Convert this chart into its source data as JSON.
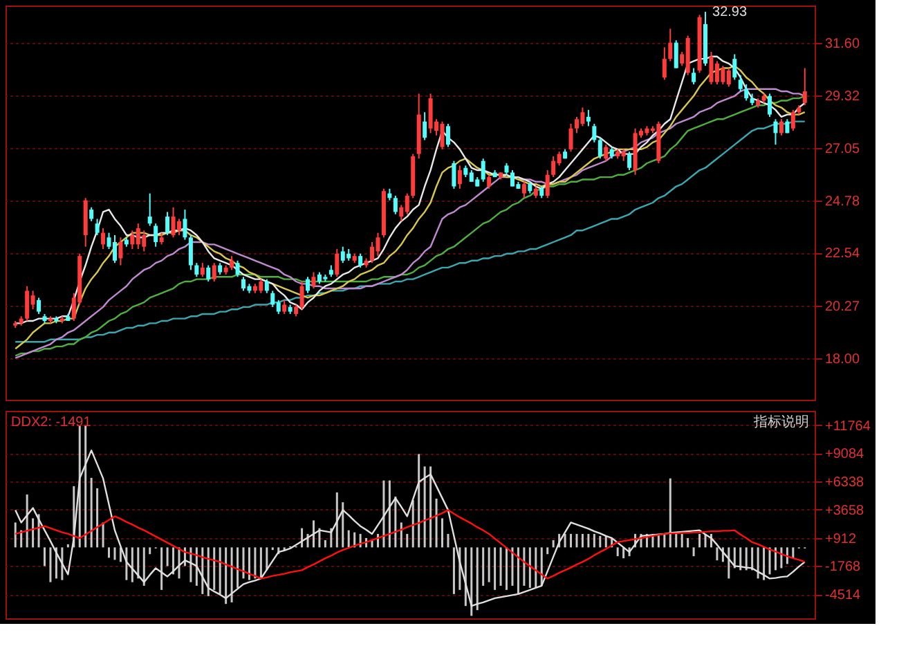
{
  "chart_data": [
    {
      "type": "candlestick",
      "tick_labels": "y",
      "grid": "y",
      "ylim": [
        16.2,
        33.2
      ],
      "yticks": [
        {
          "value": 18.0,
          "label": "18.00"
        },
        {
          "value": 20.27,
          "label": "20.27"
        },
        {
          "value": 22.54,
          "label": "22.54"
        },
        {
          "value": 24.78,
          "label": "24.78"
        },
        {
          "value": 27.05,
          "label": "27.05"
        },
        {
          "value": 29.32,
          "label": "29.32"
        },
        {
          "value": 31.6,
          "label": "31.60"
        }
      ],
      "categories": [
        null,
        null,
        null,
        null,
        null,
        null,
        null,
        null,
        null,
        null,
        null,
        null,
        null,
        null,
        null,
        null,
        null,
        null,
        null,
        null,
        null,
        null,
        null,
        null,
        null,
        null,
        null,
        null,
        null,
        null,
        null,
        null,
        null,
        null,
        null,
        null,
        null,
        null,
        null,
        null,
        null,
        null,
        null,
        null,
        null,
        null,
        null,
        null,
        null,
        null,
        null,
        null,
        null,
        null,
        null,
        null,
        null,
        null,
        null,
        null,
        null,
        null,
        null,
        null,
        null,
        null,
        null,
        null,
        null,
        null,
        null,
        null,
        null,
        null,
        null,
        null,
        null,
        null,
        null,
        null,
        null,
        null,
        null,
        null,
        null,
        null,
        null,
        null,
        null,
        null,
        null,
        null,
        null,
        null,
        null,
        null,
        null,
        null,
        null,
        null,
        null,
        null,
        null,
        null,
        null,
        null,
        null,
        null,
        null,
        null,
        null,
        null,
        null,
        null,
        null,
        null,
        null,
        null,
        null,
        null,
        null,
        null,
        null,
        null,
        null,
        null,
        null,
        null,
        null,
        null,
        null,
        null,
        null,
        null,
        null,
        null
      ],
      "ohlc": [
        [
          19.4,
          19.6,
          19.3,
          19.5
        ],
        [
          19.5,
          19.8,
          19.4,
          19.7
        ],
        [
          19.7,
          21.1,
          19.6,
          20.9
        ],
        [
          20.3,
          20.9,
          20.1,
          20.7
        ],
        [
          20.5,
          20.6,
          19.9,
          20.0
        ],
        [
          19.8,
          19.9,
          19.5,
          19.6
        ],
        [
          19.6,
          19.8,
          19.5,
          19.7
        ],
        [
          19.7,
          19.8,
          19.5,
          19.6
        ],
        [
          19.6,
          19.8,
          19.5,
          19.7
        ],
        [
          19.8,
          19.9,
          19.6,
          19.6
        ],
        [
          19.7,
          20.8,
          19.6,
          20.6
        ],
        [
          20.4,
          22.5,
          20.3,
          22.4
        ],
        [
          23.3,
          24.9,
          22.8,
          24.8
        ],
        [
          24.4,
          24.5,
          23.9,
          24.0
        ],
        [
          23.8,
          24.0,
          23.3,
          23.4
        ],
        [
          22.9,
          23.6,
          22.7,
          23.4
        ],
        [
          23.2,
          23.4,
          22.7,
          22.8
        ],
        [
          23.0,
          23.3,
          22.1,
          22.2
        ],
        [
          22.3,
          23.2,
          22.0,
          23.0
        ],
        [
          23.1,
          23.2,
          22.8,
          22.9
        ],
        [
          22.9,
          23.5,
          22.7,
          23.3
        ],
        [
          22.9,
          23.8,
          22.7,
          23.6
        ],
        [
          22.8,
          23.5,
          22.6,
          23.3
        ],
        [
          24.1,
          25.1,
          23.7,
          23.8
        ],
        [
          23.7,
          23.8,
          22.8,
          23.0
        ],
        [
          23.0,
          23.4,
          22.9,
          23.2
        ],
        [
          24.1,
          24.3,
          23.3,
          23.4
        ],
        [
          23.3,
          24.5,
          23.2,
          24.1
        ],
        [
          23.5,
          24.0,
          23.3,
          23.9
        ],
        [
          24.0,
          24.4,
          23.1,
          23.2
        ],
        [
          23.2,
          23.3,
          21.8,
          22.0
        ],
        [
          22.0,
          22.1,
          21.5,
          21.6
        ],
        [
          21.6,
          22.1,
          21.5,
          21.9
        ],
        [
          21.9,
          22.0,
          21.3,
          21.4
        ],
        [
          21.4,
          22.1,
          21.3,
          22.0
        ],
        [
          22.0,
          22.1,
          21.6,
          21.7
        ],
        [
          21.7,
          22.0,
          21.6,
          21.9
        ],
        [
          21.9,
          22.4,
          21.8,
          22.2
        ],
        [
          22.1,
          22.2,
          21.5,
          21.6
        ],
        [
          21.4,
          21.5,
          20.9,
          21.0
        ],
        [
          21.1,
          21.2,
          20.8,
          20.9
        ],
        [
          20.9,
          21.2,
          20.8,
          21.1
        ],
        [
          20.9,
          21.4,
          20.8,
          21.3
        ],
        [
          21.3,
          21.4,
          20.8,
          20.9
        ],
        [
          20.8,
          20.9,
          20.2,
          20.3
        ],
        [
          20.4,
          20.5,
          19.9,
          20.0
        ],
        [
          20.0,
          20.5,
          19.9,
          20.3
        ],
        [
          20.2,
          20.3,
          19.9,
          20.0
        ],
        [
          19.9,
          20.3,
          19.8,
          20.2
        ],
        [
          20.2,
          21.3,
          20.1,
          21.1
        ],
        [
          21.4,
          21.5,
          20.8,
          20.9
        ],
        [
          21.1,
          21.7,
          21.0,
          21.5
        ],
        [
          21.6,
          21.7,
          21.2,
          21.3
        ],
        [
          21.5,
          21.6,
          21.3,
          21.4
        ],
        [
          21.8,
          22.0,
          21.5,
          21.6
        ],
        [
          21.6,
          22.7,
          21.5,
          22.5
        ],
        [
          22.6,
          22.8,
          22.1,
          22.2
        ],
        [
          22.5,
          22.7,
          22.2,
          22.3
        ],
        [
          22.2,
          22.5,
          22.1,
          22.4
        ],
        [
          22.4,
          22.5,
          21.9,
          22.0
        ],
        [
          22.0,
          22.3,
          21.9,
          22.2
        ],
        [
          22.2,
          23.0,
          22.1,
          22.8
        ],
        [
          22.6,
          23.4,
          22.4,
          23.2
        ],
        [
          23.3,
          25.3,
          23.2,
          25.2
        ],
        [
          25.1,
          25.3,
          24.8,
          24.9
        ],
        [
          24.9,
          25.0,
          24.2,
          24.3
        ],
        [
          24.1,
          24.6,
          23.9,
          24.5
        ],
        [
          24.3,
          25.1,
          24.2,
          25.0
        ],
        [
          25.0,
          26.8,
          24.9,
          26.7
        ],
        [
          26.8,
          29.4,
          26.6,
          28.5
        ],
        [
          28.2,
          28.6,
          27.4,
          27.5
        ],
        [
          27.9,
          29.4,
          27.7,
          29.2
        ],
        [
          27.8,
          28.3,
          27.6,
          28.2
        ],
        [
          27.1,
          28.2,
          27.0,
          28.1
        ],
        [
          28.0,
          28.1,
          27.1,
          27.2
        ],
        [
          26.4,
          26.5,
          25.3,
          25.4
        ],
        [
          25.5,
          26.3,
          25.3,
          26.1
        ],
        [
          26.2,
          26.3,
          25.8,
          25.9
        ],
        [
          26.0,
          26.1,
          25.6,
          25.6
        ],
        [
          25.7,
          25.8,
          25.4,
          25.4
        ],
        [
          26.5,
          26.6,
          25.6,
          25.7
        ],
        [
          25.4,
          25.9,
          25.3,
          25.8
        ],
        [
          26.0,
          26.1,
          25.8,
          25.8
        ],
        [
          25.8,
          26.0,
          25.7,
          26.0
        ],
        [
          26.3,
          26.4,
          25.9,
          26.0
        ],
        [
          26.0,
          26.1,
          25.4,
          25.4
        ],
        [
          25.5,
          25.6,
          25.3,
          25.3
        ],
        [
          25.1,
          25.6,
          24.9,
          25.5
        ],
        [
          25.5,
          25.6,
          25.1,
          25.2
        ],
        [
          25.0,
          25.4,
          24.9,
          25.3
        ],
        [
          25.3,
          25.4,
          24.9,
          25.0
        ],
        [
          25.0,
          26.1,
          24.9,
          25.9
        ],
        [
          25.9,
          26.7,
          25.8,
          26.5
        ],
        [
          26.4,
          26.9,
          26.3,
          26.8
        ],
        [
          26.9,
          27.0,
          26.6,
          26.6
        ],
        [
          27.0,
          28.1,
          26.9,
          27.9
        ],
        [
          27.9,
          28.4,
          27.7,
          28.3
        ],
        [
          28.1,
          28.8,
          28.0,
          28.6
        ],
        [
          28.4,
          28.7,
          28.0,
          28.2
        ],
        [
          28.0,
          28.1,
          27.3,
          27.4
        ],
        [
          27.4,
          27.5,
          26.6,
          26.7
        ],
        [
          26.6,
          27.2,
          26.5,
          27.1
        ],
        [
          27.0,
          27.1,
          26.6,
          26.7
        ],
        [
          26.7,
          27.0,
          26.6,
          26.9
        ],
        [
          26.7,
          27.0,
          26.5,
          26.9
        ],
        [
          26.8,
          26.9,
          26.1,
          26.2
        ],
        [
          26.1,
          27.9,
          25.9,
          27.7
        ],
        [
          27.6,
          27.9,
          27.5,
          27.8
        ],
        [
          27.7,
          28.0,
          27.6,
          27.9
        ],
        [
          27.8,
          28.0,
          27.7,
          27.9
        ],
        [
          26.5,
          28.2,
          26.4,
          28.1
        ],
        [
          30.1,
          31.4,
          30.0,
          30.9
        ],
        [
          30.9,
          32.2,
          30.8,
          31.6
        ],
        [
          31.6,
          31.7,
          30.5,
          30.5
        ],
        [
          30.7,
          31.2,
          30.6,
          31.1
        ],
        [
          30.3,
          31.9,
          30.2,
          31.8
        ],
        [
          30.3,
          30.5,
          29.8,
          29.9
        ],
        [
          30.4,
          32.8,
          30.3,
          32.7
        ],
        [
          32.4,
          32.93,
          30.6,
          30.7
        ],
        [
          29.9,
          31.2,
          29.8,
          31.0
        ],
        [
          29.9,
          30.8,
          29.8,
          30.7
        ],
        [
          29.9,
          30.6,
          29.8,
          30.5
        ],
        [
          29.8,
          30.5,
          29.7,
          30.4
        ],
        [
          30.9,
          31.1,
          30.0,
          30.1
        ],
        [
          30.0,
          30.2,
          29.5,
          29.6
        ],
        [
          29.6,
          29.8,
          29.1,
          29.2
        ],
        [
          29.2,
          29.4,
          28.9,
          29.0
        ],
        [
          28.9,
          29.2,
          28.8,
          29.1
        ],
        [
          29.1,
          29.4,
          29.0,
          29.3
        ],
        [
          29.3,
          29.4,
          28.4,
          28.5
        ],
        [
          28.2,
          28.3,
          27.2,
          27.7
        ],
        [
          27.7,
          28.3,
          27.6,
          28.2
        ],
        [
          28.2,
          28.3,
          27.7,
          27.7
        ],
        [
          27.9,
          28.7,
          27.8,
          28.6
        ],
        [
          28.6,
          28.9,
          28.5,
          28.8
        ],
        [
          29.0,
          30.5,
          28.9,
          29.5
        ]
      ],
      "series": [
        {
          "type": "line",
          "color": "#3aa8b0",
          "values": [
            18.7,
            18.7,
            18.7,
            18.7,
            18.7,
            18.7,
            18.8,
            18.8,
            18.8,
            18.8,
            18.8,
            18.8,
            18.9,
            18.9,
            19.0,
            19.0,
            19.1,
            19.1,
            19.2,
            19.3,
            19.3,
            19.4,
            19.4,
            19.5,
            19.5,
            19.6,
            19.6,
            19.7,
            19.7,
            19.7,
            19.8,
            19.8,
            19.9,
            19.9,
            19.9,
            20.0,
            20.0,
            20.1,
            20.1,
            20.2,
            20.2,
            20.3,
            20.3,
            20.3,
            20.4,
            20.4,
            20.5,
            20.5,
            20.6,
            20.6,
            20.7,
            20.7,
            20.8,
            20.8,
            20.9,
            20.9,
            20.9,
            21.0,
            21.0,
            21.1,
            21.1,
            21.1,
            21.2,
            21.2,
            21.2,
            21.3,
            21.3,
            21.4,
            21.4,
            21.5,
            21.6,
            21.7,
            21.8,
            21.9,
            21.9,
            22.0,
            22.1,
            22.1,
            22.2,
            22.2,
            22.3,
            22.3,
            22.4,
            22.4,
            22.5,
            22.5,
            22.6,
            22.6,
            22.7,
            22.7,
            22.8,
            22.9,
            23.0,
            23.1,
            23.2,
            23.3,
            23.5,
            23.5,
            23.6,
            23.7,
            23.8,
            23.9,
            24.0,
            24.0,
            24.1,
            24.2,
            24.4,
            24.5,
            24.6,
            24.7,
            24.9,
            25.0,
            25.2,
            25.4,
            25.5,
            25.7,
            25.9,
            26.1,
            26.2,
            26.4,
            26.6,
            26.8,
            27.0,
            27.2,
            27.4,
            27.6,
            27.8,
            27.9,
            27.9,
            28.0,
            28.1,
            28.1,
            28.1,
            28.2,
            28.2,
            28.2
          ]
        },
        {
          "type": "line",
          "color": "#4fb040",
          "values": [
            18.1,
            18.2,
            18.2,
            18.3,
            18.3,
            18.4,
            18.4,
            18.5,
            18.5,
            18.6,
            18.6,
            18.8,
            18.9,
            19.1,
            19.2,
            19.4,
            19.6,
            19.7,
            19.9,
            20.0,
            20.2,
            20.3,
            20.4,
            20.6,
            20.7,
            20.8,
            20.9,
            21.0,
            21.2,
            21.3,
            21.3,
            21.4,
            21.4,
            21.4,
            21.5,
            21.5,
            21.5,
            21.5,
            21.6,
            21.6,
            21.6,
            21.6,
            21.5,
            21.5,
            21.5,
            21.5,
            21.4,
            21.4,
            21.4,
            21.3,
            21.3,
            21.3,
            21.3,
            21.3,
            21.3,
            21.3,
            21.3,
            21.3,
            21.3,
            21.3,
            21.3,
            21.4,
            21.4,
            21.5,
            21.5,
            21.5,
            21.6,
            21.6,
            21.7,
            21.9,
            22.0,
            22.2,
            22.4,
            22.5,
            22.7,
            22.8,
            23.0,
            23.2,
            23.4,
            23.6,
            23.8,
            23.9,
            24.1,
            24.3,
            24.4,
            24.6,
            24.7,
            24.9,
            25.0,
            25.2,
            25.3,
            25.4,
            25.4,
            25.5,
            25.5,
            25.6,
            25.6,
            25.7,
            25.7,
            25.7,
            25.8,
            25.8,
            25.8,
            25.9,
            25.9,
            26.0,
            26.1,
            26.2,
            26.4,
            26.5,
            26.6,
            26.7,
            27.0,
            27.2,
            27.5,
            27.8,
            27.9,
            28.0,
            28.1,
            28.2,
            28.3,
            28.3,
            28.4,
            28.5,
            28.6,
            28.7,
            28.8,
            28.9,
            28.9,
            29.0,
            29.0,
            29.1,
            29.1,
            29.2,
            29.2,
            29.3
          ]
        },
        {
          "type": "line",
          "color": "#c08ad0",
          "values": [
            18.0,
            18.1,
            18.2,
            18.3,
            18.4,
            18.5,
            18.6,
            18.8,
            18.9,
            19.1,
            19.2,
            19.4,
            19.6,
            19.8,
            20.0,
            20.2,
            20.5,
            20.7,
            20.9,
            21.1,
            21.4,
            21.6,
            21.8,
            21.9,
            22.1,
            22.2,
            22.4,
            22.5,
            22.7,
            22.8,
            23.0,
            23.0,
            23.0,
            22.9,
            22.9,
            22.8,
            22.7,
            22.6,
            22.5,
            22.4,
            22.3,
            22.2,
            22.1,
            22.0,
            21.9,
            21.8,
            21.6,
            21.5,
            21.3,
            21.2,
            21.2,
            21.1,
            21.1,
            21.0,
            21.0,
            21.0,
            21.0,
            21.0,
            21.0,
            21.0,
            21.1,
            21.1,
            21.2,
            21.3,
            21.4,
            21.5,
            21.6,
            21.8,
            22.1,
            22.3,
            22.6,
            22.8,
            23.4,
            24.0,
            24.2,
            24.3,
            24.5,
            24.6,
            24.8,
            25.0,
            25.2,
            25.4,
            25.6,
            25.8,
            25.8,
            25.8,
            25.7,
            25.7,
            25.7,
            25.6,
            25.6,
            25.5,
            25.5,
            25.6,
            25.7,
            25.8,
            25.9,
            26.1,
            26.2,
            26.3,
            26.4,
            26.5,
            26.7,
            26.8,
            26.9,
            27.0,
            27.1,
            27.3,
            27.4,
            27.5,
            27.7,
            27.8,
            27.9,
            28.1,
            28.2,
            28.3,
            28.4,
            28.6,
            28.7,
            28.8,
            29.0,
            29.1,
            29.2,
            29.3,
            29.5,
            29.6,
            29.6,
            29.6,
            29.6,
            29.6,
            29.6,
            29.5,
            29.5,
            29.4,
            29.4,
            29.3
          ]
        },
        {
          "type": "line",
          "color": "#d8c850",
          "values": [
            18.4,
            18.6,
            18.8,
            19.1,
            19.3,
            19.5,
            19.5,
            19.6,
            19.6,
            19.7,
            19.7,
            20.4,
            21.0,
            21.4,
            21.7,
            22.1,
            22.4,
            22.8,
            23.0,
            23.2,
            23.4,
            23.4,
            23.4,
            23.3,
            23.3,
            23.3,
            23.4,
            23.4,
            23.5,
            23.5,
            23.3,
            23.2,
            23.0,
            22.8,
            22.6,
            22.5,
            22.3,
            22.2,
            22.0,
            21.9,
            21.7,
            21.6,
            21.4,
            21.3,
            21.2,
            21.1,
            21.0,
            20.9,
            20.8,
            20.7,
            20.6,
            20.7,
            20.7,
            20.8,
            20.9,
            21.0,
            21.1,
            21.3,
            21.4,
            21.6,
            21.7,
            21.8,
            22.0,
            22.1,
            22.4,
            22.6,
            22.9,
            23.3,
            23.6,
            24.0,
            24.3,
            24.7,
            25.4,
            26.0,
            26.2,
            26.3,
            26.5,
            26.6,
            26.4,
            26.2,
            26.1,
            25.9,
            25.9,
            25.9,
            25.8,
            25.8,
            25.7,
            25.6,
            25.5,
            25.5,
            25.4,
            25.5,
            25.5,
            25.6,
            25.6,
            25.8,
            26.0,
            26.2,
            26.4,
            26.6,
            26.7,
            26.8,
            26.9,
            27.0,
            27.0,
            27.0,
            27.0,
            27.0,
            27.1,
            27.3,
            27.4,
            27.7,
            28.0,
            28.4,
            28.7,
            29.0,
            29.3,
            29.7,
            30.0,
            30.3,
            30.4,
            30.5,
            30.5,
            30.6,
            30.4,
            30.1,
            29.9,
            29.6,
            29.4,
            29.1,
            28.9,
            28.8,
            28.6,
            28.5,
            28.5,
            28.6
          ]
        },
        {
          "type": "line",
          "color": "#e8e8e8",
          "values": [
            19.5,
            19.5,
            19.6,
            19.6,
            19.7,
            19.7,
            19.7,
            19.7,
            19.8,
            19.8,
            20.5,
            21.3,
            22.0,
            22.8,
            23.5,
            24.3,
            24.4,
            24.0,
            23.7,
            23.3,
            23.3,
            23.2,
            23.2,
            23.3,
            23.3,
            23.4,
            23.4,
            23.5,
            23.5,
            23.6,
            23.5,
            23.3,
            23.0,
            22.6,
            22.3,
            22.2,
            22.1,
            22.0,
            21.8,
            21.6,
            21.5,
            21.4,
            21.4,
            21.3,
            21.2,
            20.9,
            20.7,
            20.4,
            20.3,
            20.1,
            20.4,
            20.6,
            20.9,
            21.1,
            21.2,
            21.4,
            21.6,
            21.7,
            21.9,
            22.0,
            22.1,
            22.2,
            22.3,
            22.7,
            23.2,
            23.6,
            23.9,
            24.1,
            24.4,
            24.6,
            25.4,
            26.1,
            27.0,
            27.8,
            27.5,
            27.3,
            27.0,
            26.6,
            26.2,
            26.1,
            26.1,
            26.0,
            25.9,
            25.9,
            25.9,
            25.8,
            25.8,
            25.7,
            25.6,
            25.4,
            25.3,
            25.5,
            25.6,
            25.8,
            26.1,
            26.4,
            26.7,
            27.0,
            27.3,
            27.6,
            27.5,
            27.3,
            27.1,
            27.0,
            26.8,
            26.8,
            26.8,
            27.1,
            27.3,
            27.6,
            27.8,
            28.1,
            28.3,
            29.1,
            29.9,
            30.7,
            30.8,
            30.9,
            30.9,
            31.0,
            31.0,
            30.8,
            30.7,
            30.5,
            30.1,
            29.6,
            29.2,
            29.1,
            29.0,
            28.9,
            28.7,
            28.4,
            28.5,
            28.5,
            28.8,
            29.0
          ]
        }
      ],
      "annotations": [
        "32.93"
      ]
    },
    {
      "type": "bar",
      "tick_labels": "y",
      "grid": "y",
      "ylim": [
        -6840,
        13160
      ],
      "yticks": [
        {
          "value": -4514,
          "label": "-4514"
        },
        {
          "value": -1768,
          "label": "-1768"
        },
        {
          "value": 912,
          "label": "+912"
        },
        {
          "value": 3658,
          "label": "+3658"
        },
        {
          "value": 6338,
          "label": "+6338"
        },
        {
          "value": 9084,
          "label": "+9084"
        },
        {
          "value": 11764,
          "label": "+11764"
        }
      ],
      "categories": [
        null,
        null,
        null,
        null,
        null,
        null,
        null,
        null,
        null,
        null,
        null,
        null,
        null,
        null,
        null,
        null,
        null,
        null,
        null,
        null,
        null,
        null,
        null,
        null,
        null,
        null,
        null,
        null,
        null,
        null,
        null,
        null,
        null,
        null,
        null,
        null,
        null,
        null,
        null,
        null,
        null,
        null,
        null,
        null,
        null,
        null,
        null,
        null,
        null,
        null,
        null,
        null,
        null,
        null,
        null,
        null,
        null,
        null,
        null,
        null,
        null,
        null,
        null,
        null,
        null,
        null,
        null,
        null,
        null,
        null,
        null,
        null,
        null,
        null,
        null,
        null,
        null,
        null,
        null,
        null,
        null,
        null,
        null,
        null,
        null,
        null,
        null,
        null,
        null,
        null,
        null,
        null,
        null,
        null,
        null,
        null,
        null,
        null,
        null,
        null,
        null,
        null,
        null,
        null,
        null,
        null,
        null,
        null,
        null,
        null,
        null,
        null,
        null,
        null,
        null,
        null,
        null,
        null,
        null,
        null,
        null,
        null,
        null,
        null,
        null,
        null,
        null,
        null,
        null,
        null,
        null,
        null,
        null,
        null,
        null,
        null
      ],
      "series": [
        {
          "type": "bar",
          "color": "#c8c8c8",
          "values": [
            2400,
            1650,
            5100,
            2800,
            3200,
            -1800,
            -3350,
            -3000,
            -3150,
            300,
            5900,
            11700,
            11700,
            6700,
            5700,
            2400,
            -1000,
            -1200,
            -1400,
            -3150,
            -3350,
            -3000,
            -3700,
            -650,
            -100,
            -4100,
            -1800,
            -2600,
            -3000,
            -1800,
            -3350,
            -3700,
            -4500,
            -4700,
            -4100,
            -4500,
            -5450,
            -5300,
            -3900,
            -3000,
            -3150,
            -3000,
            -3000,
            -2200,
            -250,
            -650,
            -250,
            100,
            100,
            1850,
            1300,
            2600,
            1850,
            700,
            1850,
            5300,
            4350,
            1650,
            1450,
            1300,
            900,
            700,
            1300,
            6450,
            6450,
            4900,
            2400,
            1300,
            4550,
            9000,
            7800,
            7800,
            4700,
            2800,
            1300,
            -4500,
            -4100,
            -5650,
            -6600,
            -6050,
            -3700,
            -3350,
            -4100,
            -3700,
            -4100,
            -3700,
            -4500,
            -3700,
            -3900,
            -3900,
            -3700,
            -650,
            700,
            1300,
            1300,
            1300,
            1300,
            1300,
            1300,
            1300,
            1100,
            1100,
            900,
            -850,
            -1050,
            -850,
            1300,
            1300,
            1300,
            1300,
            1300,
            1300,
            6650,
            1300,
            1300,
            900,
            -850,
            1300,
            1300,
            1300,
            -1250,
            -1400,
            -3000,
            -2000,
            -2200,
            -2200,
            -2200,
            -3000,
            -3150,
            -2600,
            -2200,
            -2000,
            -1600,
            -1050,
            -100,
            -100
          ]
        },
        {
          "type": "line",
          "color": "#e0e0e0",
          "values": [
            3600,
            2400,
            3100,
            3800,
            2700,
            1650,
            600,
            -500,
            -1550,
            -2600,
            900,
            6650,
            8000,
            9350,
            8000,
            6650,
            4150,
            1650,
            100,
            -1400,
            -2050,
            -2700,
            -3350,
            -2650,
            -2000,
            -2400,
            -2800,
            -2300,
            -1750,
            -1250,
            -1500,
            -1800,
            -2850,
            -3900,
            -4250,
            -4550,
            -4900,
            -4450,
            -4000,
            -3550,
            -3350,
            -3200,
            -3000,
            -2150,
            -1300,
            -450,
            -300,
            -100,
            250,
            600,
            950,
            1300,
            1650,
            1550,
            1450,
            2500,
            3600,
            3100,
            2550,
            2050,
            1700,
            1300,
            2150,
            3000,
            3900,
            4750,
            3900,
            3000,
            4650,
            6300,
            6700,
            7050,
            5900,
            4750,
            3600,
            1100,
            -1400,
            -3500,
            -5650,
            -5450,
            -5300,
            -5100,
            -4900,
            -4800,
            -4700,
            -4600,
            -4500,
            -4300,
            -4100,
            -3900,
            -3700,
            -2300,
            -900,
            500,
            1450,
            2400,
            2200,
            2000,
            1800,
            1550,
            1350,
            1100,
            900,
            450,
            0,
            -450,
            300,
            1100,
            1150,
            1200,
            1250,
            1300,
            1400,
            1450,
            1500,
            1550,
            1600,
            1650,
            1250,
            900,
            250,
            -450,
            -1100,
            -1800,
            -1850,
            -1950,
            -2000,
            -2350,
            -2650,
            -3000,
            -2950,
            -2850,
            -2800,
            -2350,
            -1850,
            -1400
          ]
        },
        {
          "type": "line",
          "color": "#ff1010",
          "values": [
            1300,
            1450,
            1600,
            1750,
            1900,
            2050,
            1850,
            1650,
            1450,
            1300,
            1100,
            900,
            1250,
            1600,
            1950,
            2300,
            2650,
            3000,
            2750,
            2450,
            2200,
            1900,
            1650,
            1350,
            1050,
            750,
            450,
            150,
            -150,
            -450,
            -600,
            -750,
            -950,
            -1100,
            -1250,
            -1400,
            -1650,
            -1850,
            -2100,
            -2300,
            -2550,
            -2750,
            -3000,
            -2900,
            -2750,
            -2650,
            -2550,
            -2400,
            -2300,
            -2200,
            -1900,
            -1650,
            -1350,
            -1050,
            -800,
            -500,
            -250,
            -50,
            150,
            350,
            500,
            700,
            900,
            1100,
            1300,
            1500,
            1700,
            1950,
            2150,
            2350,
            2600,
            2800,
            3050,
            3300,
            3600,
            3250,
            2900,
            2600,
            2300,
            1950,
            1650,
            1300,
            850,
            400,
            -50,
            -500,
            -950,
            -1400,
            -1800,
            -2200,
            -2600,
            -3000,
            -2750,
            -2450,
            -2200,
            -1950,
            -1650,
            -1400,
            -1100,
            -750,
            -450,
            -150,
            200,
            500,
            600,
            700,
            800,
            900,
            1000,
            1100,
            1200,
            1300,
            1350,
            1350,
            1400,
            1400,
            1450,
            1450,
            1500,
            1550,
            1550,
            1600,
            1600,
            1650,
            1250,
            900,
            500,
            300,
            50,
            -200,
            -400,
            -650,
            -850,
            -1050,
            -1200,
            -1400
          ]
        }
      ],
      "annotations": [
        "DDX2: -1491",
        "指标说明"
      ]
    }
  ]
}
